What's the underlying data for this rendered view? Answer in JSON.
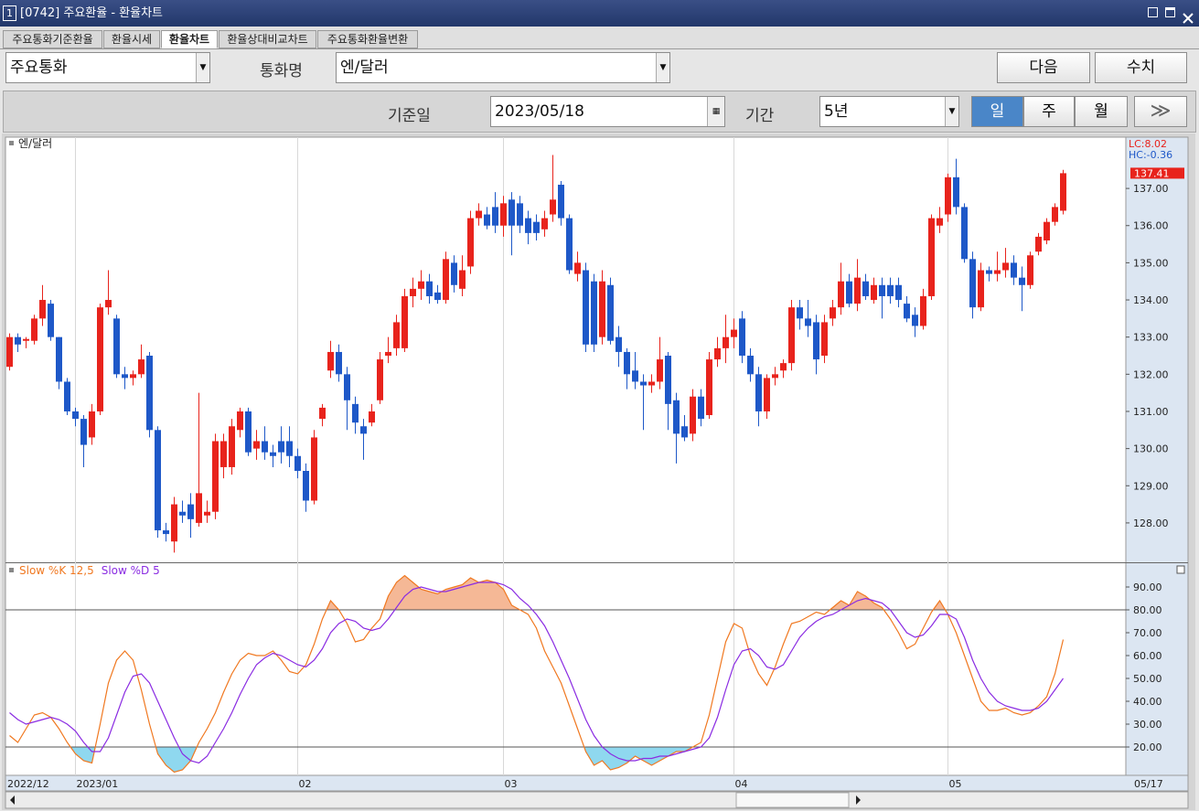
{
  "window": {
    "badge": "1",
    "title": "[0742] 주요환율 - 환율차트"
  },
  "tabs": [
    {
      "label": "주요통화기준환율",
      "active": false
    },
    {
      "label": "환율시세",
      "active": false
    },
    {
      "label": "환율차트",
      "active": true
    },
    {
      "label": "환율상대비교차트",
      "active": false
    },
    {
      "label": "주요통화환율변환",
      "active": false
    }
  ],
  "controls": {
    "group": "주요통화",
    "currency_label": "통화명",
    "currency": "엔/달러",
    "buttons": [
      "다음",
      "수치"
    ],
    "date_label": "기준일",
    "date": "2023/05/18",
    "period_label": "기간",
    "period": "5년",
    "intervals": [
      {
        "label": "일",
        "active": true
      },
      {
        "label": "주",
        "active": false
      },
      {
        "label": "월",
        "active": false
      }
    ]
  },
  "chart_data": [
    {
      "type": "candlestick",
      "title": "엔/달러",
      "up_color": "#e8231c",
      "down_color": "#1e58c8",
      "xgrid": true,
      "annotations": [
        {
          "text": "LC:8.02",
          "color": "#e8231c"
        },
        {
          "text": "HC:-0.36",
          "color": "#1e58c8"
        }
      ],
      "last_value": 137.41,
      "end_label": "05/17",
      "categories": [
        "2022/12",
        null,
        null,
        null,
        null,
        null,
        null,
        null,
        "2023/01",
        null,
        null,
        null,
        null,
        null,
        null,
        null,
        null,
        null,
        null,
        null,
        null,
        null,
        null,
        null,
        null,
        null,
        null,
        null,
        null,
        null,
        null,
        null,
        null,
        null,
        null,
        "02",
        null,
        null,
        null,
        null,
        null,
        null,
        null,
        null,
        null,
        null,
        null,
        null,
        null,
        null,
        null,
        null,
        null,
        null,
        null,
        null,
        null,
        null,
        null,
        null,
        "03",
        null,
        null,
        null,
        null,
        null,
        null,
        null,
        null,
        null,
        null,
        null,
        null,
        null,
        null,
        null,
        null,
        null,
        null,
        null,
        null,
        null,
        null,
        null,
        null,
        null,
        null,
        null,
        "04",
        null,
        null,
        null,
        null,
        null,
        null,
        null,
        null,
        null,
        null,
        null,
        null,
        null,
        null,
        null,
        null,
        null,
        null,
        null,
        null,
        null,
        null,
        null,
        null,
        null,
        "05",
        null,
        null,
        null,
        null,
        null,
        null,
        null,
        null,
        null,
        null,
        null,
        null,
        null,
        null
      ],
      "open": [
        132.2,
        133.0,
        132.9,
        132.9,
        133.5,
        133.9,
        133.0,
        131.8,
        131.0,
        130.8,
        130.3,
        131.0,
        133.8,
        133.5,
        132.0,
        131.9,
        132.0,
        132.5,
        130.5,
        127.8,
        127.5,
        128.3,
        128.5,
        128.0,
        128.2,
        128.3,
        129.5,
        129.5,
        130.5,
        131.0,
        130.0,
        130.2,
        129.9,
        130.2,
        130.2,
        129.8,
        129.4,
        128.6,
        130.8,
        132.1,
        132.6,
        132.0,
        131.2,
        130.6,
        130.7,
        131.3,
        132.5,
        132.7,
        132.7,
        134.1,
        134.3,
        134.5,
        134.2,
        134.0,
        135.0,
        134.3,
        134.9,
        136.2,
        136.3,
        136.5,
        136.0,
        136.7,
        136.6,
        136.2,
        136.1,
        135.9,
        136.3,
        137.1,
        136.2,
        134.7,
        134.8,
        134.5,
        133.0,
        134.4,
        133.0,
        132.6,
        132.1,
        131.8,
        131.7,
        131.8,
        132.5,
        131.3,
        130.6,
        130.4,
        131.4,
        130.9,
        132.4,
        132.7,
        133.0,
        133.5,
        132.5,
        132.0,
        131.0,
        131.9,
        132.1,
        132.3,
        133.8,
        133.5,
        133.4,
        132.5,
        133.5,
        133.8,
        134.5,
        133.9,
        134.5,
        134.0,
        134.4,
        134.4,
        134.4,
        133.9,
        133.6,
        133.3,
        134.1,
        136.0,
        136.3,
        137.3,
        136.5,
        135.1,
        133.8,
        134.8,
        134.7,
        134.8,
        135.0,
        134.6,
        134.4,
        135.3,
        135.6,
        136.1,
        136.4
      ],
      "high": [
        133.1,
        133.1,
        133.0,
        133.6,
        134.4,
        134.0,
        133.0,
        131.9,
        131.1,
        130.9,
        131.2,
        133.9,
        134.8,
        133.6,
        132.2,
        132.1,
        132.8,
        132.6,
        130.6,
        128.0,
        128.7,
        128.6,
        128.8,
        131.5,
        128.6,
        130.4,
        130.4,
        130.8,
        131.1,
        131.1,
        130.5,
        130.6,
        130.1,
        130.6,
        130.6,
        130.0,
        129.6,
        130.5,
        131.2,
        132.9,
        132.8,
        132.2,
        131.4,
        130.8,
        131.2,
        132.6,
        133.0,
        133.6,
        134.3,
        134.6,
        134.8,
        134.7,
        134.4,
        135.3,
        135.2,
        135.2,
        136.4,
        136.6,
        136.5,
        136.9,
        136.8,
        136.9,
        136.8,
        136.4,
        136.3,
        136.4,
        137.9,
        137.2,
        136.3,
        135.3,
        135.0,
        134.7,
        134.8,
        134.6,
        133.3,
        132.7,
        132.6,
        132.0,
        132.0,
        133.0,
        132.6,
        131.5,
        130.9,
        131.6,
        131.6,
        132.6,
        133.0,
        133.6,
        133.5,
        133.7,
        132.7,
        132.2,
        132.0,
        132.2,
        132.4,
        134.0,
        134.0,
        134.0,
        133.6,
        133.6,
        134.0,
        135.0,
        134.7,
        135.1,
        134.7,
        134.6,
        134.6,
        134.6,
        134.6,
        134.1,
        133.8,
        134.3,
        136.3,
        136.5,
        137.4,
        137.8,
        136.6,
        135.3,
        135.0,
        134.9,
        135.3,
        135.4,
        135.2,
        134.9,
        135.3,
        135.8,
        136.2,
        136.6,
        137.5
      ],
      "low": [
        132.1,
        132.6,
        132.7,
        132.8,
        133.3,
        132.9,
        131.6,
        130.9,
        130.6,
        129.5,
        130.1,
        130.9,
        133.6,
        131.9,
        131.6,
        131.7,
        131.9,
        130.3,
        127.6,
        127.5,
        127.2,
        128.0,
        127.6,
        127.9,
        128.0,
        128.1,
        129.2,
        129.3,
        130.3,
        129.8,
        129.7,
        129.7,
        129.5,
        129.6,
        129.5,
        129.2,
        128.3,
        128.5,
        130.6,
        131.9,
        131.8,
        130.5,
        130.4,
        129.7,
        130.6,
        131.2,
        132.3,
        132.5,
        132.6,
        133.8,
        134.0,
        133.9,
        133.9,
        133.9,
        134.2,
        134.1,
        134.7,
        136.0,
        135.9,
        135.8,
        135.7,
        135.2,
        135.8,
        135.5,
        135.6,
        135.7,
        136.1,
        136.0,
        134.7,
        134.5,
        132.6,
        132.6,
        132.8,
        132.8,
        132.2,
        131.6,
        131.6,
        130.5,
        131.5,
        131.6,
        130.5,
        129.6,
        130.2,
        130.2,
        130.6,
        130.8,
        132.2,
        132.3,
        132.7,
        132.3,
        131.8,
        130.6,
        130.8,
        131.7,
        131.9,
        132.1,
        133.2,
        133.0,
        132.0,
        132.3,
        133.3,
        133.6,
        133.8,
        133.7,
        134.0,
        133.9,
        133.5,
        133.9,
        133.8,
        133.4,
        133.0,
        133.2,
        134.0,
        135.8,
        136.1,
        136.3,
        135.0,
        133.5,
        133.7,
        134.5,
        134.5,
        134.6,
        134.4,
        133.7,
        134.3,
        135.2,
        135.5,
        136.0,
        136.3
      ],
      "close": [
        133.0,
        132.8,
        132.95,
        133.5,
        134.0,
        133.0,
        131.8,
        131.0,
        130.8,
        130.1,
        131.0,
        133.8,
        134.0,
        132.0,
        131.9,
        132.0,
        132.4,
        130.5,
        127.8,
        127.7,
        128.5,
        128.2,
        128.1,
        128.8,
        128.3,
        130.2,
        130.2,
        130.6,
        131.0,
        129.9,
        130.2,
        129.9,
        129.8,
        129.9,
        129.8,
        129.4,
        128.6,
        130.3,
        131.1,
        132.6,
        132.0,
        131.3,
        130.7,
        130.4,
        131.0,
        132.4,
        132.6,
        133.4,
        134.1,
        134.3,
        134.5,
        134.1,
        134.0,
        135.1,
        134.4,
        134.8,
        136.2,
        136.4,
        136.0,
        136.0,
        136.6,
        136.0,
        136.0,
        135.8,
        135.8,
        136.2,
        136.7,
        136.2,
        134.8,
        135.0,
        132.8,
        132.8,
        134.5,
        132.9,
        132.6,
        132.0,
        131.8,
        131.7,
        131.8,
        132.4,
        131.2,
        130.4,
        130.3,
        131.4,
        130.8,
        132.4,
        132.7,
        133.0,
        133.2,
        132.5,
        132.0,
        131.0,
        131.9,
        132.0,
        132.3,
        133.8,
        133.5,
        133.3,
        132.4,
        133.4,
        133.8,
        134.5,
        133.9,
        134.6,
        134.1,
        134.4,
        134.1,
        134.1,
        134.0,
        133.5,
        133.3,
        134.1,
        136.2,
        136.2,
        137.3,
        136.5,
        135.1,
        133.8,
        134.8,
        134.7,
        134.8,
        135.0,
        134.6,
        134.4,
        135.2,
        135.7,
        136.1,
        136.5,
        137.41
      ],
      "ylim": [
        126.94,
        138.38
      ],
      "yticks": [
        {
          "value": 128,
          "label": "128.00"
        },
        {
          "value": 129,
          "label": "129.00"
        },
        {
          "value": 130,
          "label": "130.00"
        },
        {
          "value": 131,
          "label": "131.00"
        },
        {
          "value": 132,
          "label": "132.00"
        },
        {
          "value": 133,
          "label": "133.00"
        },
        {
          "value": 134,
          "label": "134.00"
        },
        {
          "value": 135,
          "label": "135.00"
        },
        {
          "value": 136,
          "label": "136.00"
        },
        {
          "value": 137,
          "label": "137.00"
        }
      ]
    },
    {
      "type": "line",
      "fill_above": "#f5b896",
      "fill_below": "#8fd8ef",
      "reference_lines": [
        80,
        20
      ],
      "series": [
        {
          "name": "Slow %K 12,5",
          "color": "#f07820",
          "values": [
            25,
            22,
            28,
            34,
            35,
            33,
            28,
            22,
            17,
            14,
            13,
            30,
            48,
            58,
            62,
            58,
            45,
            30,
            17,
            12,
            9,
            10,
            14,
            22,
            28,
            35,
            44,
            52,
            58,
            61,
            60,
            60,
            62,
            58,
            53,
            52,
            56,
            65,
            76,
            84,
            80,
            74,
            66,
            67,
            72,
            76,
            86,
            92,
            95,
            92,
            89,
            88,
            87,
            89,
            90,
            91,
            94,
            92,
            93,
            92,
            89,
            82,
            80,
            78,
            72,
            62,
            55,
            48,
            38,
            28,
            18,
            12,
            14,
            10,
            11,
            13,
            16,
            14,
            12,
            14,
            16,
            18,
            18,
            20,
            22,
            34,
            50,
            66,
            74,
            72,
            60,
            52,
            47,
            55,
            65,
            74,
            75,
            77,
            79,
            78,
            81,
            84,
            82,
            88,
            86,
            83,
            81,
            76,
            70,
            63,
            65,
            72,
            79,
            84,
            78,
            70,
            60,
            50,
            40,
            36,
            36,
            37,
            35,
            34,
            35,
            38,
            42,
            52,
            67
          ]
        },
        {
          "name": "Slow %D 5",
          "color": "#8a2be2",
          "values": [
            35,
            32,
            30,
            31,
            32,
            33,
            32,
            30,
            27,
            22,
            18,
            18,
            24,
            34,
            44,
            51,
            52,
            48,
            40,
            32,
            24,
            17,
            14,
            13,
            16,
            22,
            28,
            35,
            43,
            50,
            56,
            59,
            61,
            60,
            58,
            56,
            55,
            58,
            63,
            70,
            74,
            76,
            75,
            72,
            71,
            72,
            76,
            81,
            86,
            89,
            90,
            89,
            88,
            88,
            89,
            90,
            91,
            92,
            92,
            92,
            91,
            89,
            85,
            82,
            78,
            73,
            66,
            58,
            50,
            41,
            32,
            25,
            20,
            17,
            15,
            14,
            14,
            15,
            15,
            16,
            16,
            17,
            18,
            19,
            20,
            24,
            33,
            45,
            56,
            62,
            63,
            60,
            55,
            54,
            56,
            62,
            68,
            72,
            75,
            77,
            78,
            80,
            82,
            84,
            85,
            84,
            83,
            80,
            75,
            70,
            68,
            69,
            73,
            78,
            78,
            76,
            68,
            58,
            50,
            44,
            40,
            38,
            37,
            36,
            36,
            37,
            40,
            45,
            50
          ]
        }
      ],
      "ylim": [
        7.6,
        100.4
      ],
      "yticks": [
        {
          "value": 20,
          "label": "20.00"
        },
        {
          "value": 30,
          "label": "30.00"
        },
        {
          "value": 40,
          "label": "40.00"
        },
        {
          "value": 50,
          "label": "50.00"
        },
        {
          "value": 60,
          "label": "60.00"
        },
        {
          "value": 70,
          "label": "70.00"
        },
        {
          "value": 80,
          "label": "80.00"
        },
        {
          "value": 90,
          "label": "90.00"
        }
      ]
    }
  ]
}
